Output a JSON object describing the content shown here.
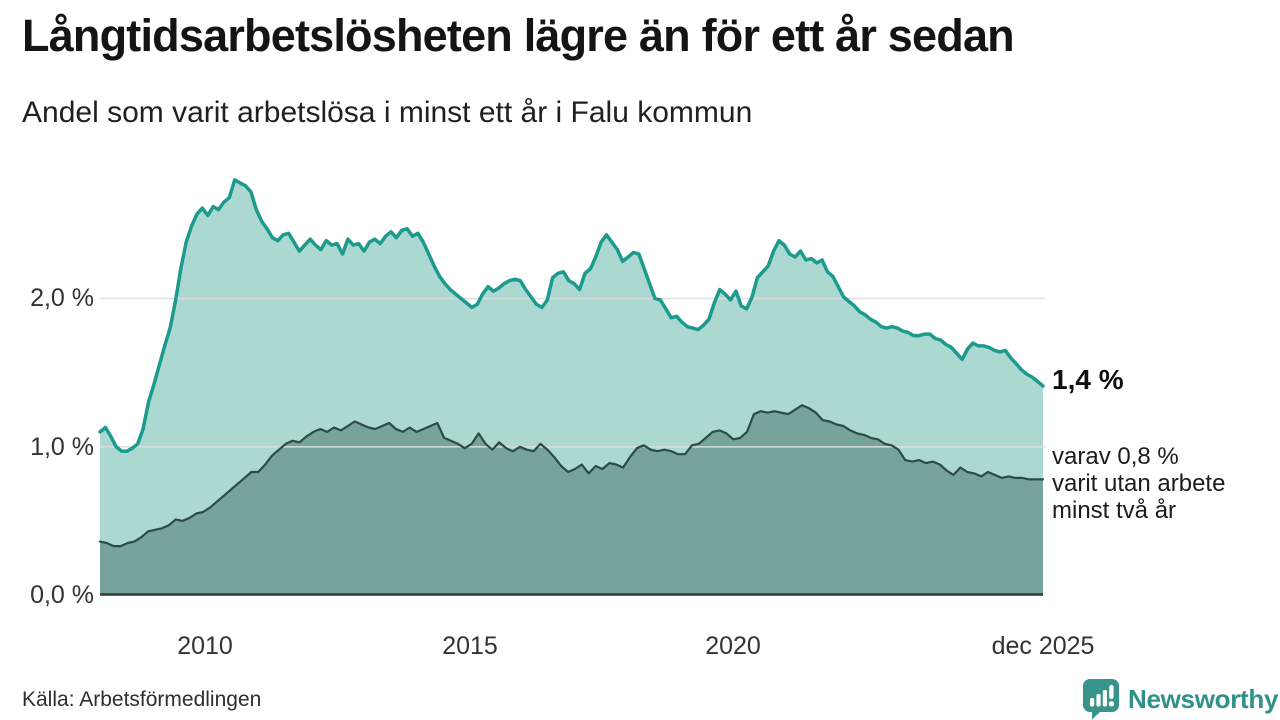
{
  "header": {
    "title": "Långtidsarbetslösheten lägre än för ett år sedan",
    "subtitle": "Andel som varit arbetslösa i minst ett år i Falu kommun"
  },
  "chart_data": {
    "type": "area",
    "title": "Långtidsarbetslösheten lägre än för ett år sedan",
    "subtitle": "Andel som varit arbetslösa i minst ett år i Falu kommun",
    "unit": "%",
    "x_range": [
      2008.0,
      2025.92
    ],
    "ylim": [
      0,
      2.9
    ],
    "grid": "horizontal",
    "legend_position": "none",
    "yticks": [
      {
        "value": 0.0,
        "label": "0,0 %"
      },
      {
        "value": 1.0,
        "label": "1,0 %"
      },
      {
        "value": 2.0,
        "label": "2,0 %"
      }
    ],
    "xticks": [
      {
        "year": 2010,
        "label": "2010"
      },
      {
        "year": 2015,
        "label": "2015"
      },
      {
        "year": 2020,
        "label": "2020"
      },
      {
        "year": 2025.92,
        "label": "dec 2025"
      }
    ],
    "series": [
      {
        "name": "Andel arbetslösa minst ett år",
        "color": "#1b9a8d",
        "fill": "#abd8d1",
        "stroke_width": 3.5,
        "latest_value": 1.4,
        "latest_label": "1,4 %",
        "values": [
          1.1,
          1.13,
          1.07,
          1.0,
          0.97,
          0.97,
          0.99,
          1.02,
          1.12,
          1.3,
          1.42,
          1.55,
          1.68,
          1.8,
          1.98,
          2.2,
          2.38,
          2.49,
          2.57,
          2.61,
          2.56,
          2.62,
          2.6,
          2.65,
          2.68,
          2.8,
          2.78,
          2.76,
          2.72,
          2.6,
          2.52,
          2.47,
          2.41,
          2.39,
          2.43,
          2.44,
          2.38,
          2.32,
          2.36,
          2.4,
          2.36,
          2.33,
          2.39,
          2.36,
          2.37,
          2.3,
          2.4,
          2.36,
          2.37,
          2.32,
          2.38,
          2.4,
          2.37,
          2.42,
          2.45,
          2.41,
          2.46,
          2.47,
          2.42,
          2.44,
          2.38,
          2.3,
          2.22,
          2.15,
          2.1,
          2.06,
          2.03,
          2.0,
          1.97,
          1.94,
          1.96,
          2.03,
          2.08,
          2.05,
          2.07,
          2.1,
          2.12,
          2.13,
          2.12,
          2.06,
          2.01,
          1.96,
          1.94,
          1.99,
          2.14,
          2.17,
          2.18,
          2.12,
          2.1,
          2.06,
          2.17,
          2.2,
          2.28,
          2.38,
          2.43,
          2.38,
          2.33,
          2.25,
          2.28,
          2.31,
          2.3,
          2.2,
          2.1,
          2.0,
          1.99,
          1.93,
          1.87,
          1.88,
          1.84,
          1.81,
          1.8,
          1.79,
          1.82,
          1.86,
          1.97,
          2.06,
          2.03,
          1.99,
          2.05,
          1.95,
          1.93,
          2.01,
          2.14,
          2.18,
          2.22,
          2.32,
          2.39,
          2.36,
          2.3,
          2.28,
          2.32,
          2.26,
          2.27,
          2.24,
          2.26,
          2.18,
          2.15,
          2.08,
          2.01,
          1.98,
          1.95,
          1.91,
          1.89,
          1.86,
          1.84,
          1.81,
          1.8,
          1.81,
          1.8,
          1.78,
          1.77,
          1.75,
          1.75,
          1.76,
          1.76,
          1.73,
          1.72,
          1.69,
          1.67,
          1.63,
          1.59,
          1.66,
          1.7,
          1.68,
          1.68,
          1.67,
          1.65,
          1.64,
          1.65,
          1.6,
          1.56,
          1.52,
          1.49,
          1.47,
          1.44,
          1.41
        ]
      },
      {
        "name": "varav arbetslösa minst två år",
        "color": "#2d4b46",
        "fill": "#76a49c",
        "stroke_width": 2.2,
        "latest_value": 0.8,
        "latest_label": "0,8 %",
        "values": [
          0.36,
          0.35,
          0.33,
          0.33,
          0.35,
          0.36,
          0.39,
          0.43,
          0.44,
          0.45,
          0.47,
          0.51,
          0.5,
          0.52,
          0.55,
          0.56,
          0.59,
          0.63,
          0.67,
          0.71,
          0.75,
          0.79,
          0.83,
          0.83,
          0.88,
          0.94,
          0.98,
          1.02,
          1.04,
          1.03,
          1.07,
          1.1,
          1.12,
          1.1,
          1.13,
          1.11,
          1.14,
          1.17,
          1.15,
          1.13,
          1.12,
          1.14,
          1.16,
          1.12,
          1.1,
          1.13,
          1.1,
          1.12,
          1.14,
          1.16,
          1.06,
          1.04,
          1.02,
          0.99,
          1.02,
          1.09,
          1.02,
          0.98,
          1.03,
          0.99,
          0.97,
          1.0,
          0.98,
          0.97,
          1.02,
          0.98,
          0.93,
          0.87,
          0.83,
          0.85,
          0.88,
          0.82,
          0.87,
          0.85,
          0.89,
          0.88,
          0.86,
          0.93,
          0.99,
          1.01,
          0.98,
          0.97,
          0.98,
          0.97,
          0.95,
          0.95,
          1.01,
          1.02,
          1.06,
          1.1,
          1.11,
          1.09,
          1.05,
          1.06,
          1.1,
          1.22,
          1.24,
          1.23,
          1.24,
          1.23,
          1.22,
          1.25,
          1.28,
          1.26,
          1.23,
          1.18,
          1.17,
          1.15,
          1.14,
          1.11,
          1.09,
          1.08,
          1.06,
          1.05,
          1.02,
          1.01,
          0.98,
          0.91,
          0.9,
          0.91,
          0.89,
          0.9,
          0.88,
          0.84,
          0.81,
          0.86,
          0.83,
          0.82,
          0.8,
          0.83,
          0.81,
          0.79,
          0.8,
          0.79,
          0.79,
          0.78,
          0.78,
          0.78
        ]
      }
    ]
  },
  "annotations": {
    "latest_value": "1,4 %",
    "secondary_line1": "varav 0,8 %",
    "secondary_line2": "varit utan arbete",
    "secondary_line3": "minst två år"
  },
  "footer": {
    "source": "Källa: Arbetsförmedlingen",
    "logo_text": "Newsworthy"
  },
  "colors": {
    "accent_teal": "#1b9a8d",
    "light_fill": "#abd8d1",
    "dark_line": "#2d4b46",
    "dark_fill": "#76a49c",
    "gridline": "#d9dedd",
    "baseline": "#2f3e3a",
    "logo_teal": "#37948a"
  }
}
